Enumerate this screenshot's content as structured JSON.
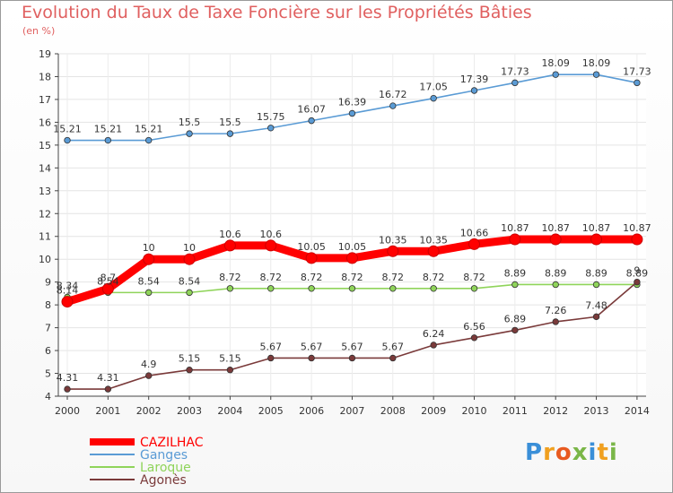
{
  "chart_data": {
    "type": "line",
    "title": "Evolution du Taux de Taxe Foncière sur les Propriétés Bâties",
    "subtitle": "(en %)",
    "x": [
      2000,
      2001,
      2002,
      2003,
      2004,
      2005,
      2006,
      2007,
      2008,
      2009,
      2010,
      2011,
      2012,
      2013,
      2014
    ],
    "ylim": [
      4,
      19
    ],
    "yticks": [
      4,
      5,
      6,
      7,
      8,
      9,
      10,
      11,
      12,
      13,
      14,
      15,
      16,
      17,
      18,
      19
    ],
    "series": [
      {
        "name": "CAZILHAC",
        "color": "#ff0000",
        "values": [
          8.14,
          8.7,
          10,
          10,
          10.6,
          10.6,
          10.05,
          10.05,
          10.35,
          10.35,
          10.66,
          10.87,
          10.87,
          10.87,
          10.87
        ],
        "labels": [
          "8.14",
          "8.7",
          "10",
          "10",
          "10.6",
          "10.6",
          "10.05",
          "10.05",
          "10.35",
          "10.35",
          "10.66",
          "10.87",
          "10.87",
          "10.87",
          "10.87"
        ]
      },
      {
        "name": "Ganges",
        "color": "#5a9bd5",
        "values": [
          15.21,
          15.21,
          15.21,
          15.5,
          15.5,
          15.75,
          16.07,
          16.39,
          16.72,
          17.05,
          17.39,
          17.73,
          18.09,
          18.09,
          17.73
        ],
        "labels": [
          "15.21",
          "15.21",
          "15.21",
          "15.5",
          "15.5",
          "15.75",
          "16.07",
          "16.39",
          "16.72",
          "17.05",
          "17.39",
          "17.73",
          "18.09",
          "18.09",
          "17.73"
        ]
      },
      {
        "name": "Laroque",
        "color": "#8fd45a",
        "values": [
          8.34,
          8.54,
          8.54,
          8.54,
          8.72,
          8.72,
          8.72,
          8.72,
          8.72,
          8.72,
          8.72,
          8.89,
          8.89,
          8.89,
          8.89
        ],
        "labels": [
          "8.34",
          "8.54",
          "8.54",
          "8.54",
          "8.72",
          "8.72",
          "8.72",
          "8.72",
          "8.72",
          "8.72",
          "8.72",
          "8.89",
          "8.89",
          "8.89",
          "8.89"
        ]
      },
      {
        "name": "Agonès",
        "color": "#7a3a3a",
        "values": [
          4.31,
          4.31,
          4.9,
          5.15,
          5.15,
          5.67,
          5.67,
          5.67,
          5.67,
          6.24,
          6.56,
          6.89,
          7.26,
          7.48,
          9
        ],
        "labels": [
          "4.31",
          "4.31",
          "4.9",
          "5.15",
          "5.15",
          "5.67",
          "5.67",
          "5.67",
          "5.67",
          "6.24",
          "6.56",
          "6.89",
          "7.26",
          "7.48",
          "9"
        ]
      }
    ]
  },
  "logo": {
    "letters": [
      "P",
      "r",
      "o",
      "x",
      "i",
      "t",
      "i"
    ],
    "colors": [
      "#3a8fd8",
      "#f0a020",
      "#e85a20",
      "#7ab648",
      "#3a8fd8",
      "#f0a020",
      "#7ab648"
    ]
  }
}
